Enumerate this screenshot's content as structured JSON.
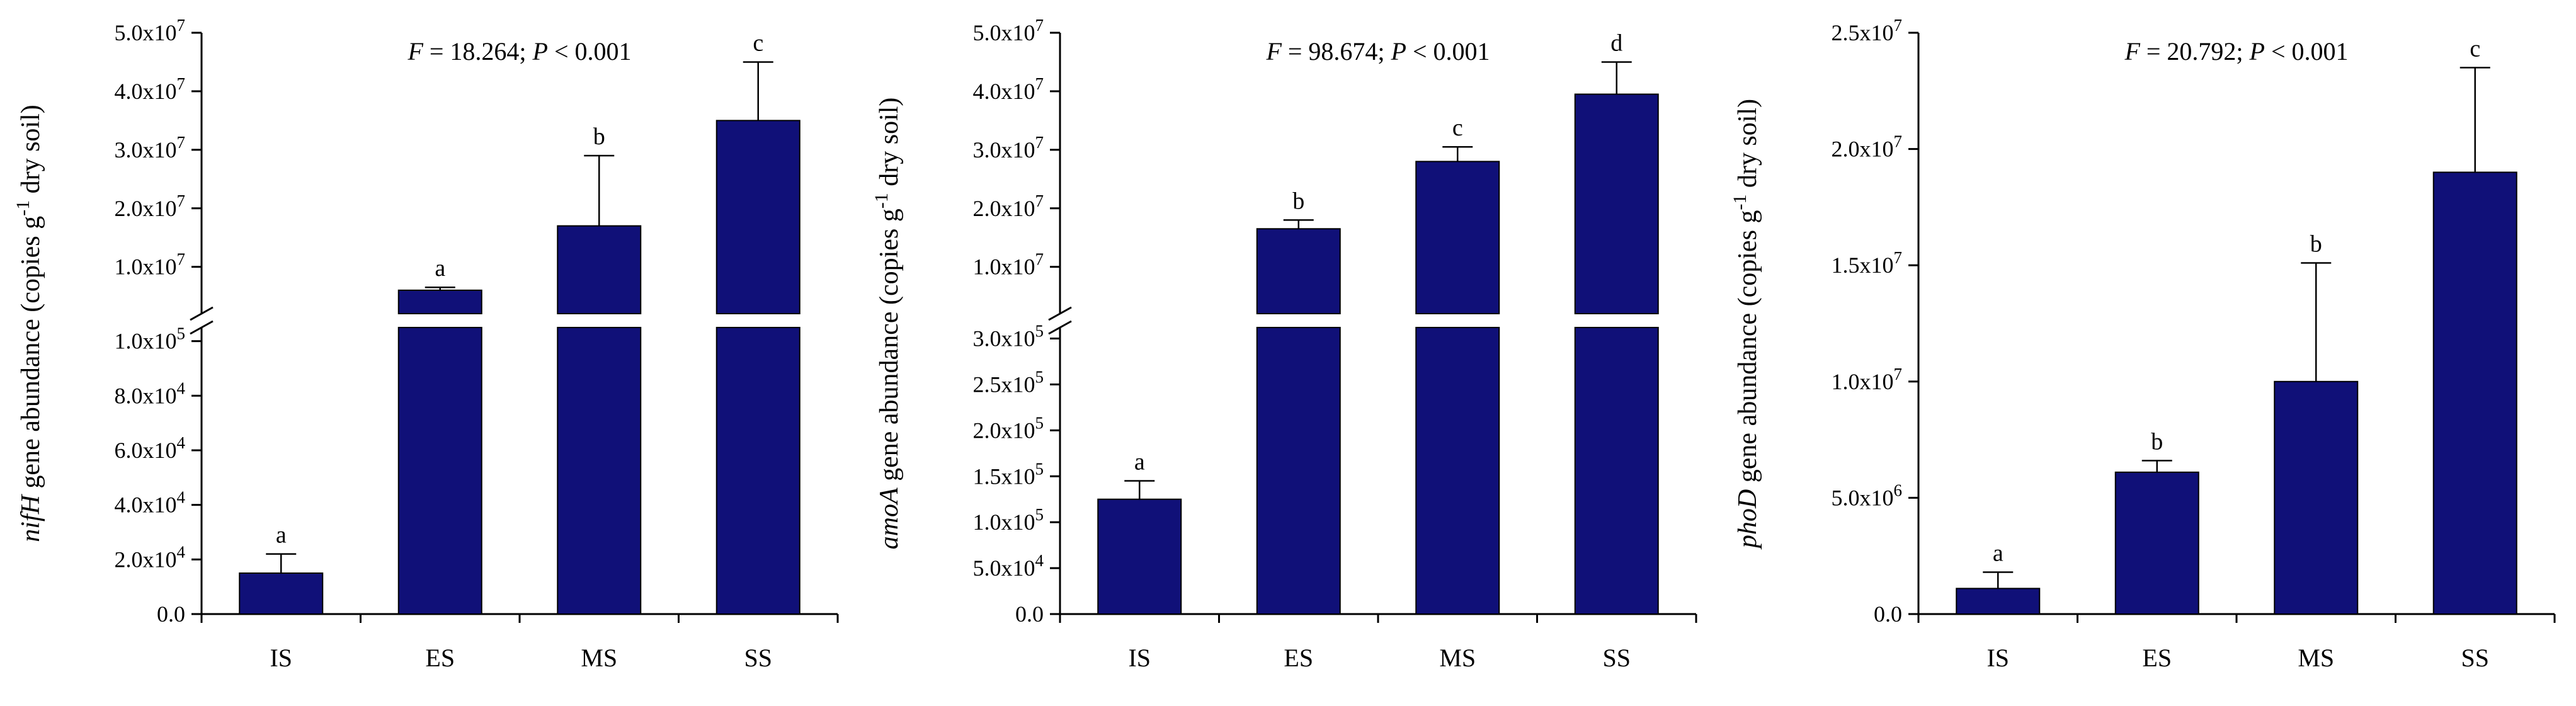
{
  "figure": {
    "background": "#FFFFFF"
  },
  "style": {
    "bar_fill": "#101078",
    "bar_edge": "#000000",
    "axis_color": "#000000",
    "text_color": "#000000"
  },
  "chart_data": [
    {
      "id": "nifH",
      "type": "bar",
      "annotation": {
        "f_italic": "F",
        "f_text": " = 18.264; ",
        "p_italic": "P",
        "p_text": " < 0.001"
      },
      "ylabel": {
        "italic": "nifH",
        "main": " gene abundance (copies g",
        "sup": "-1",
        "post": " dry soil)"
      },
      "categories": [
        "IS",
        "ES",
        "MS",
        "SS"
      ],
      "values": [
        15000,
        6000000,
        17000000,
        35000000
      ],
      "errors": [
        7000,
        500000,
        12000000,
        10000000
      ],
      "letters": [
        "a",
        "a",
        "b",
        "c"
      ],
      "axis_break": true,
      "lower_axis": {
        "min": 0,
        "max": 105000,
        "ticks": [
          {
            "value": 0,
            "label": "0.0"
          },
          {
            "value": 20000,
            "label": "2.0x10^4"
          },
          {
            "value": 40000,
            "label": "4.0x10^4"
          },
          {
            "value": 60000,
            "label": "6.0x10^4"
          },
          {
            "value": 80000,
            "label": "8.0x10^4"
          },
          {
            "value": 100000,
            "label": "1.0x10^5"
          }
        ]
      },
      "upper_axis": {
        "min": 2000000,
        "max": 50000000,
        "ticks": [
          {
            "value": 10000000,
            "label": "1.0x10^7"
          },
          {
            "value": 20000000,
            "label": "2.0x10^7"
          },
          {
            "value": 30000000,
            "label": "3.0x10^7"
          },
          {
            "value": 40000000,
            "label": "4.0x10^7"
          },
          {
            "value": 50000000,
            "label": "5.0x10^7"
          }
        ]
      }
    },
    {
      "id": "amoA",
      "type": "bar",
      "annotation": {
        "f_italic": "F",
        "f_text": " = 98.674; ",
        "p_italic": "P",
        "p_text": " < 0.001"
      },
      "ylabel": {
        "italic": "amoA",
        "main": " gene abundance (copies g",
        "sup": "-1",
        "post": " dry soil)"
      },
      "categories": [
        "IS",
        "ES",
        "MS",
        "SS"
      ],
      "values": [
        125000,
        16500000,
        28000000,
        39500000
      ],
      "errors": [
        20000,
        1500000,
        2500000,
        5500000
      ],
      "letters": [
        "a",
        "b",
        "c",
        "d"
      ],
      "axis_break": true,
      "lower_axis": {
        "min": 0,
        "max": 312000,
        "ticks": [
          {
            "value": 0,
            "label": "0.0"
          },
          {
            "value": 50000,
            "label": "5.0x10^4"
          },
          {
            "value": 100000,
            "label": "1.0x10^5"
          },
          {
            "value": 150000,
            "label": "1.5x10^5"
          },
          {
            "value": 200000,
            "label": "2.0x10^5"
          },
          {
            "value": 250000,
            "label": "2.5x10^5"
          },
          {
            "value": 300000,
            "label": "3.0x10^5"
          }
        ]
      },
      "upper_axis": {
        "min": 2000000,
        "max": 50000000,
        "ticks": [
          {
            "value": 10000000,
            "label": "1.0x10^7"
          },
          {
            "value": 20000000,
            "label": "2.0x10^7"
          },
          {
            "value": 30000000,
            "label": "3.0x10^7"
          },
          {
            "value": 40000000,
            "label": "4.0x10^7"
          },
          {
            "value": 50000000,
            "label": "5.0x10^7"
          }
        ]
      }
    },
    {
      "id": "phoD",
      "type": "bar",
      "annotation": {
        "f_italic": "F",
        "f_text": " = 20.792; ",
        "p_italic": "P",
        "p_text": " < 0.001"
      },
      "ylabel": {
        "italic": "phoD",
        "main": " gene abundance (copies g",
        "sup": "-1",
        "post": " dry soil)"
      },
      "categories": [
        "IS",
        "ES",
        "MS",
        "SS"
      ],
      "values": [
        1100000,
        6100000,
        10000000,
        19000000
      ],
      "errors": [
        700000,
        500000,
        5100000,
        4500000
      ],
      "letters": [
        "a",
        "b",
        "b",
        "c"
      ],
      "axis_break": false,
      "axis": {
        "min": 0,
        "max": 25000000,
        "ticks": [
          {
            "value": 0,
            "label": "0.0"
          },
          {
            "value": 5000000,
            "label": "5.0x10^6"
          },
          {
            "value": 10000000,
            "label": "1.0x10^7"
          },
          {
            "value": 15000000,
            "label": "1.5x10^7"
          },
          {
            "value": 20000000,
            "label": "2.0x10^7"
          },
          {
            "value": 25000000,
            "label": "2.5x10^7"
          }
        ]
      }
    }
  ]
}
